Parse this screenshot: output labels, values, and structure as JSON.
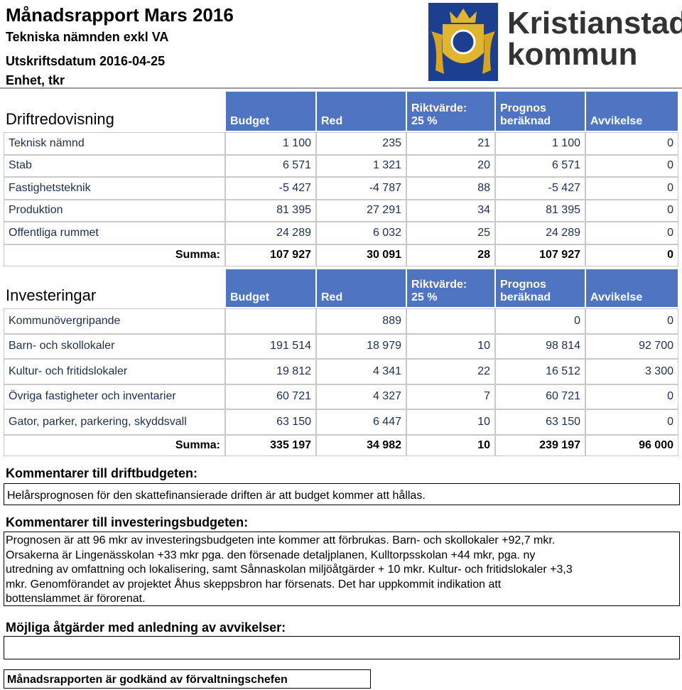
{
  "header": {
    "title": "Månadsrapport Mars 2016",
    "subtitle": "Tekniska nämnden exkl VA",
    "print_date": "Utskriftsdatum 2016-04-25",
    "unit": "Enhet, tkr",
    "logo_text": [
      "Kristianstads",
      "kommun"
    ]
  },
  "drift": {
    "title": "Driftredovisning",
    "columns": [
      [
        "Budget"
      ],
      [
        "Red"
      ],
      [
        "Riktvärde:",
        "25 %"
      ],
      [
        "Prognos",
        "beräknad"
      ],
      [
        "Avvikelse"
      ]
    ],
    "rows": [
      [
        "Teknisk nämnd",
        "1 100",
        "235",
        "21",
        "1 100",
        "0"
      ],
      [
        "Stab",
        "6 571",
        "1 321",
        "20",
        "6 571",
        "0"
      ],
      [
        "Fastighetsteknik",
        "-5 427",
        "-4 787",
        "88",
        "-5 427",
        "0"
      ],
      [
        "Produktion",
        "81 395",
        "27 291",
        "34",
        "81 395",
        "0"
      ],
      [
        "Offentliga rummet",
        "24 289",
        "6 032",
        "25",
        "24 289",
        "0"
      ]
    ],
    "total": [
      "Summa:",
      "107 927",
      "30 091",
      "28",
      "107 927",
      "0"
    ]
  },
  "invest": {
    "title": "Investeringar",
    "columns": [
      [
        "Budget"
      ],
      [
        "Red"
      ],
      [
        "Riktvärde:",
        "25 %"
      ],
      [
        "Prognos",
        "beräknad"
      ],
      [
        "Avvikelse"
      ]
    ],
    "rows": [
      [
        "Kommunövergripande",
        null,
        "889",
        null,
        "0",
        "0"
      ],
      [
        "Barn- och skollokaler",
        "191 514",
        "18 979",
        "10",
        "98 814",
        "92 700"
      ],
      [
        "Kultur- och fritidslokaler",
        "19 812",
        "4 341",
        "22",
        "16 512",
        "3 300"
      ],
      [
        "Övriga fastigheter och inventarier",
        "60 721",
        "4 327",
        "7",
        "60 721",
        "0"
      ],
      [
        "Gator, parker, parkering, skyddsvall",
        "63 150",
        "6 447",
        "10",
        "63 150",
        "0"
      ]
    ],
    "total": [
      "Summa:",
      "335 197",
      "34 982",
      "10",
      "239 197",
      "96 000"
    ]
  },
  "comments": {
    "drift_label": "Kommentarer till driftbudgeten:",
    "drift_text": "Helårsprognosen för den skattefinansierade driften är att budget kommer att hållas.",
    "invest_label": "Kommentarer till investeringsbudgeten:",
    "invest_lines": [
      "Prognosen är att 96 mkr av investeringsbudgeten inte kommer att förbrukas. Barn- och skollokaler +92,7 mkr.",
      "Orsakerna är Lingenässkolan +33 mkr pga. den försenade detaljplanen, Kulltorpsskolan +44 mkr, pga. ny",
      "utredning av omfattning och lokalisering, samt Sånnaskolan miljöåtgärder + 10 mkr. Kultur- och fritidslokaler +3,3",
      "mkr. Genomförandet av projektet Åhus skeppsbron har försenats. Det har uppkommit  indikation att",
      "bottenslammet är förorenat."
    ],
    "actions_label": "Möjliga åtgärder med anledning av avvikelser:",
    "approval": "Månadsrapporten är godkänd av förvaltningschefen"
  }
}
